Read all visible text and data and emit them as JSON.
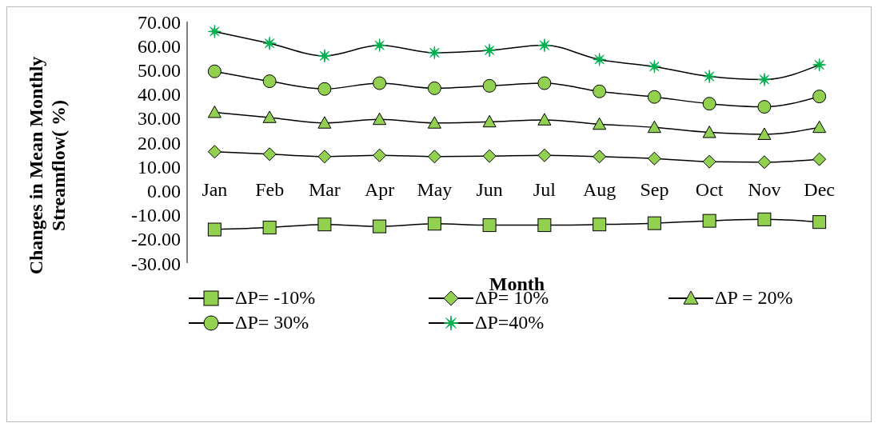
{
  "chart_data": {
    "type": "line",
    "xlabel": "Month",
    "ylabel": "Changes in Mean Monthly Streamflow( %)",
    "categories": [
      "Jan",
      "Feb",
      "Mar",
      "Apr",
      "May",
      "Jun",
      "Jul",
      "Aug",
      "Sep",
      "Oct",
      "Nov",
      "Dec"
    ],
    "ylim": [
      -30,
      70
    ],
    "yticks": [
      {
        "value": -30,
        "label": "-30.00"
      },
      {
        "value": -20,
        "label": "-20.00"
      },
      {
        "value": -10,
        "label": "-10.00"
      },
      {
        "value": 0,
        "label": "0.00"
      },
      {
        "value": 10,
        "label": "10.00"
      },
      {
        "value": 20,
        "label": "20.00"
      },
      {
        "value": 30,
        "label": "30.00"
      },
      {
        "value": 40,
        "label": "40.00"
      },
      {
        "value": 50,
        "label": "50.00"
      },
      {
        "value": 60,
        "label": "60.00"
      },
      {
        "value": 70,
        "label": "70.00"
      }
    ],
    "grid": false,
    "legend": "bottom",
    "series": [
      {
        "name": "ΔP= -10%",
        "color": "#92d050",
        "marker": "square",
        "values": [
          -16.1,
          -15.3,
          -14,
          -14.8,
          -13.7,
          -14.3,
          -14.3,
          -14,
          -13.5,
          -12.5,
          -11.9,
          -13
        ]
      },
      {
        "name": "ΔP= 10%",
        "color": "#92d050",
        "marker": "diamond",
        "values": [
          16.1,
          15.1,
          14.1,
          14.6,
          14.1,
          14.3,
          14.6,
          14.1,
          13.3,
          12,
          11.8,
          13
        ]
      },
      {
        "name": "ΔP = 20%",
        "color": "#92d050",
        "marker": "triangle",
        "values": [
          32.4,
          30.3,
          28,
          29.5,
          28,
          28.5,
          29.3,
          27.5,
          26.2,
          24.1,
          23.3,
          26.2
        ]
      },
      {
        "name": "ΔP= 30%",
        "color": "#92d050",
        "marker": "circle",
        "values": [
          49.4,
          45.3,
          42.1,
          44.5,
          42.4,
          43.4,
          44.5,
          41.1,
          38.8,
          36,
          34.7,
          39
        ]
      },
      {
        "name": "ΔP=40%",
        "color": "#00b050",
        "marker": "star",
        "values": [
          65.9,
          61,
          55.8,
          60.2,
          57.1,
          58.1,
          60.2,
          54.3,
          51.4,
          47.3,
          46,
          52.1
        ]
      }
    ]
  }
}
